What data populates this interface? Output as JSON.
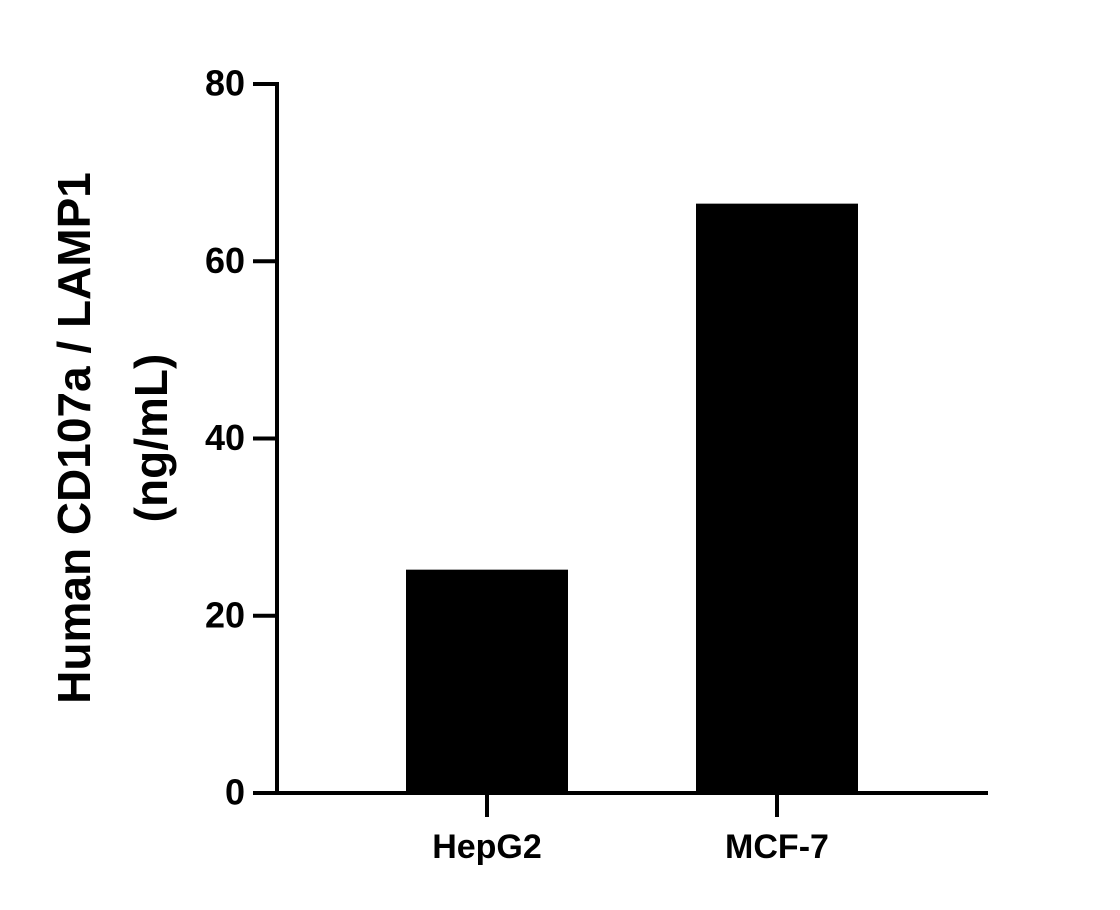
{
  "chart_data": {
    "type": "bar",
    "ylabel": [
      "Human CD107a / LAMP1",
      "(ng/mL)"
    ],
    "categories": [
      "HepG2",
      "MCF-7"
    ],
    "values": [
      25.2,
      66.5
    ],
    "color": "#000000",
    "ylim": [
      0,
      80
    ],
    "yticks": [
      0,
      20,
      40,
      60,
      80
    ],
    "grid": false
  }
}
